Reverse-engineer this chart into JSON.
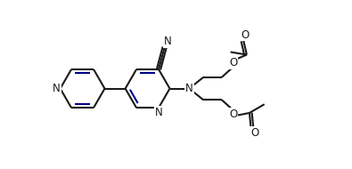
{
  "bg": "#ffffff",
  "lc": "#1a1a1a",
  "dc": "#00008B",
  "lw": 1.5,
  "doff_ring": 0.12,
  "doff_chain": 0.08,
  "fs": 8.5,
  "figsize": [
    3.95,
    1.9
  ],
  "dpi": 100,
  "xlim": [
    -0.5,
    10.5
  ],
  "ylim": [
    0.0,
    6.2
  ]
}
